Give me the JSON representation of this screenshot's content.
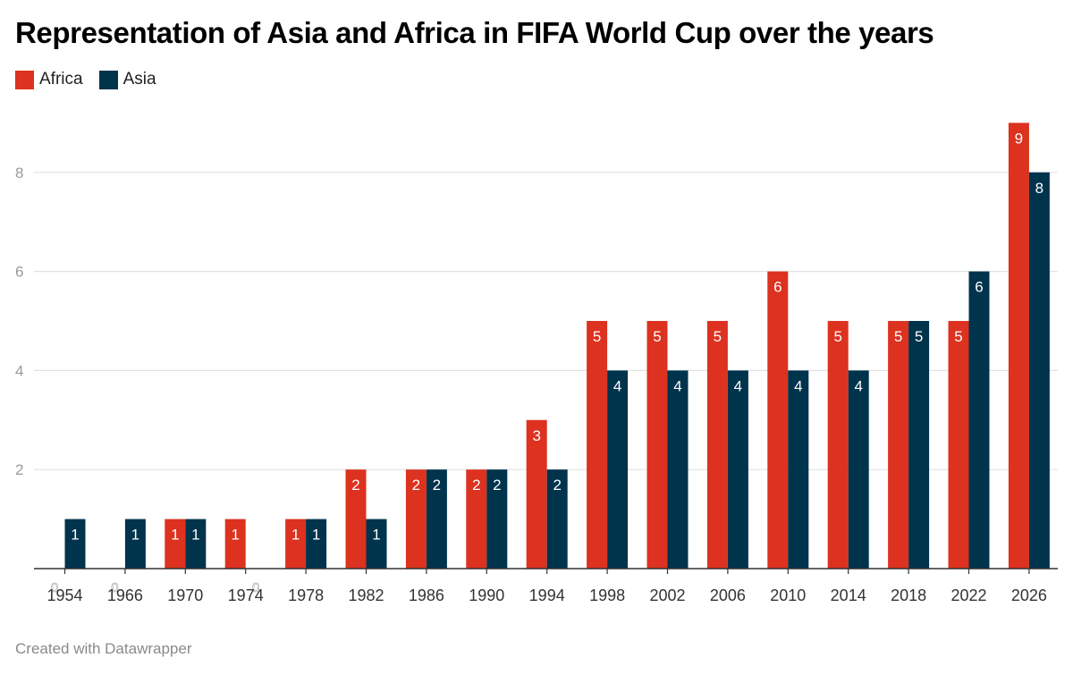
{
  "title": "Representation of Asia and Africa in FIFA World Cup over the years",
  "legend": [
    {
      "label": "Africa",
      "color": "#dc321f"
    },
    {
      "label": "Asia",
      "color": "#00334c"
    }
  ],
  "footer": "Created with Datawrapper",
  "chart_data": {
    "type": "bar",
    "title": "Representation of Asia and Africa in FIFA World Cup over the years",
    "xlabel": "",
    "ylabel": "",
    "categories": [
      "1954",
      "1966",
      "1970",
      "1974",
      "1978",
      "1982",
      "1986",
      "1990",
      "1994",
      "1998",
      "2002",
      "2006",
      "2010",
      "2014",
      "2018",
      "2022",
      "2026"
    ],
    "series": [
      {
        "name": "Africa",
        "color": "#dc321f",
        "values": [
          0,
          0,
          1,
          1,
          1,
          2,
          2,
          2,
          3,
          5,
          5,
          5,
          6,
          5,
          5,
          5,
          9
        ]
      },
      {
        "name": "Asia",
        "color": "#00334c",
        "values": [
          1,
          1,
          1,
          0,
          1,
          1,
          2,
          2,
          2,
          4,
          4,
          4,
          4,
          4,
          5,
          6,
          8
        ]
      }
    ],
    "yticks": [
      2,
      4,
      6,
      8
    ],
    "ylim": [
      0,
      9
    ],
    "grid": true,
    "legend_position": "top-left",
    "data_labels": true
  }
}
